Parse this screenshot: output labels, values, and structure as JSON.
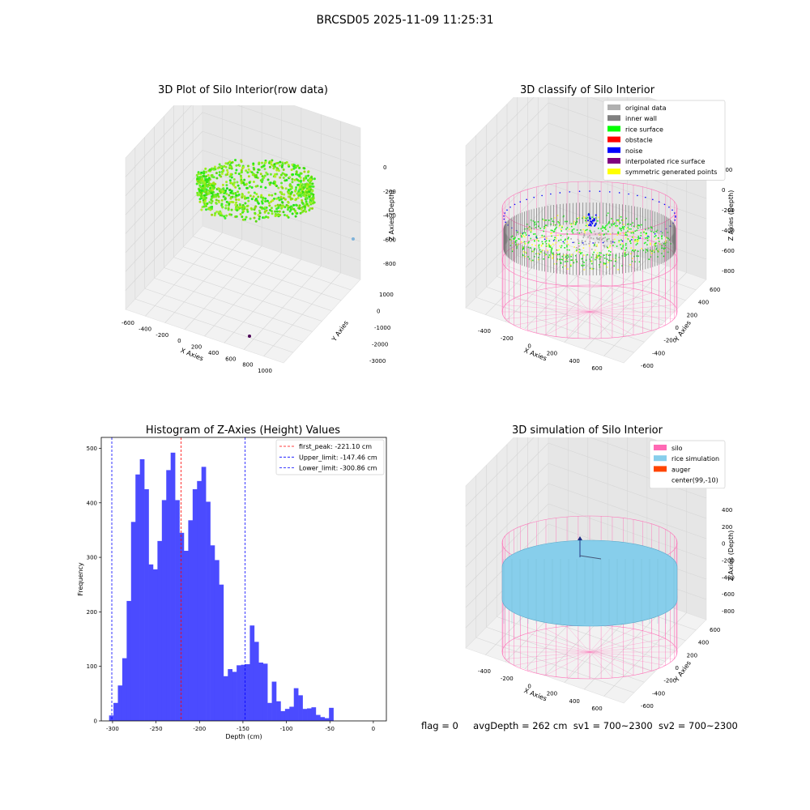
{
  "suptitle": "BRCSD05 2025-11-09 11:25:31",
  "panels": {
    "raw": {
      "title": "3D Plot of Silo Interior(row data)",
      "xlabel": "X Axies",
      "ylabel": "Y Axies",
      "zlabel": "Z Axies (Depth)",
      "xticks": [
        "-600",
        "-400",
        "-200",
        "0",
        "200",
        "400",
        "600",
        "800",
        "1000"
      ],
      "yticks": [
        "1000",
        "0",
        "-1000",
        "-2000",
        "-3000"
      ],
      "zticks": [
        "0",
        "-200",
        "-400",
        "-600",
        "-800"
      ]
    },
    "classify": {
      "title": "3D classify of Silo Interior",
      "xlabel": "X Axies",
      "ylabel": "Y Axies",
      "zlabel": "Z Axies (Depth)",
      "xticks": [
        "-400",
        "-200",
        "0",
        "200",
        "400",
        "600"
      ],
      "yticks": [
        "600",
        "400",
        "200",
        "0",
        "-200",
        "-400",
        "-600"
      ],
      "zticks": [
        "200",
        "0",
        "-200",
        "-400",
        "-600",
        "-800"
      ],
      "legend": [
        {
          "label": "original data",
          "color": "#b0b0b0"
        },
        {
          "label": "inner wall",
          "color": "#808080"
        },
        {
          "label": "rice surface",
          "color": "#00ff00"
        },
        {
          "label": "obstacle",
          "color": "#ff0000"
        },
        {
          "label": "noise",
          "color": "#0000ff"
        },
        {
          "label": "interpolated rice surface",
          "color": "#800080"
        },
        {
          "label": "symmetric generated points",
          "color": "#ffff00"
        }
      ]
    },
    "simulation": {
      "title": "3D simulation of Silo Interior",
      "xlabel": "X Axies",
      "ylabel": "Y Axies",
      "zlabel": "Z Axies (Depth)",
      "xticks": [
        "-400",
        "-200",
        "0",
        "200",
        "400",
        "600"
      ],
      "yticks": [
        "600",
        "400",
        "200",
        "0",
        "-200",
        "-400",
        "-600"
      ],
      "zticks": [
        "400",
        "200",
        "0",
        "-200",
        "-400",
        "-600",
        "-800"
      ],
      "legend": [
        {
          "label": "silo",
          "color": "#ff69b4"
        },
        {
          "label": "rice simulation",
          "color": "#87ceeb"
        },
        {
          "label": "auger",
          "color": "#ff4500"
        },
        {
          "label": "center(99,-10)",
          "color": "none"
        }
      ]
    }
  },
  "status": {
    "flag": "flag = 0",
    "avg_depth": "avgDepth = 262 cm",
    "sv1": "sv1 = 700~2300",
    "sv2": "sv2 = 700~2300"
  },
  "colors": {
    "hist": "#4b4bff",
    "peak": "#ff0000",
    "limit": "#0000ff",
    "silo": "#ff69b4",
    "rice": "#87ceeb"
  },
  "chart_data": {
    "type": "bar",
    "title": "Histogram of Z-Axies (Height) Values",
    "xlabel": "Depth (cm)",
    "ylabel": "Frequency",
    "xlim": [
      -313,
      15
    ],
    "ylim": [
      0,
      520
    ],
    "xticks": [
      -300,
      -250,
      -200,
      -150,
      -100,
      -50,
      0
    ],
    "yticks": [
      0,
      100,
      200,
      300,
      400,
      500
    ],
    "bin_start": -304,
    "bin_width": 5.06,
    "values": [
      10,
      33,
      65,
      115,
      220,
      365,
      452,
      480,
      425,
      287,
      278,
      330,
      405,
      460,
      492,
      405,
      345,
      312,
      368,
      425,
      440,
      466,
      402,
      322,
      295,
      250,
      82,
      95,
      90,
      102,
      103,
      104,
      175,
      145,
      107,
      105,
      33,
      72,
      36,
      18,
      22,
      26,
      60,
      47,
      22,
      23,
      25,
      11,
      7,
      5,
      24
    ],
    "lines": [
      {
        "name": "first_peak: -221.10 cm",
        "x": -221.1,
        "color": "#ff0000"
      },
      {
        "name": "Upper_limit: -147.46 cm",
        "x": -147.46,
        "color": "#0000ff"
      },
      {
        "name": "Lower_limit: -300.86 cm",
        "x": -300.86,
        "color": "#0000ff"
      }
    ],
    "legend_position": "upper right",
    "grid": false
  }
}
